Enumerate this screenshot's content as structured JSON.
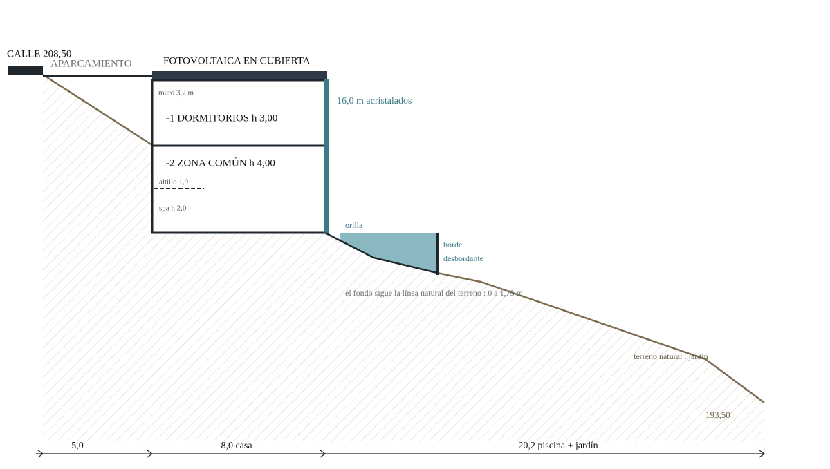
{
  "labels": {
    "street": "CALLE 208,50",
    "parking": "APARCAMIENTO",
    "roof": "FOTOVOLTAICA EN CUBIERTA",
    "wall": "muro 3,2 m",
    "level1": "-1 DORMITORIOS h 3,00",
    "glazing": "16,0 m acristalados",
    "level2": "-2 ZONA COMÚN h 4,00",
    "mezzanine": "altillo 1,9",
    "spa": "spa h 2,0",
    "shore": "orilla",
    "overflow_1": "borde",
    "overflow_2": "desbordante",
    "pool_bottom": "el fondo sigue la línea natural del terreno : 0 a 1,75 m",
    "terrain": "terreno natural : jardín",
    "low_level": "193,50"
  },
  "dimensions": [
    "5,0",
    "8,0 casa",
    "20,2 piscina + jardín"
  ]
}
